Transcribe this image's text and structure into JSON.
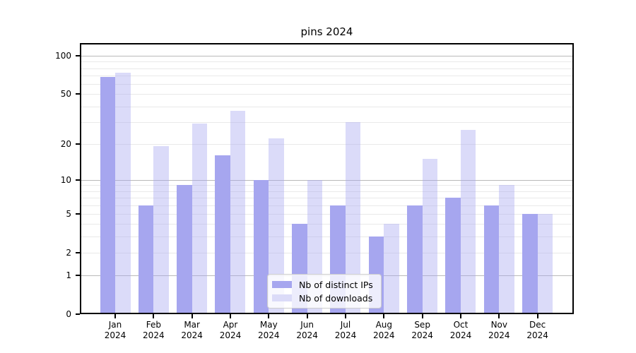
{
  "title": "pins 2024",
  "chart_data": {
    "type": "bar",
    "categories": [
      "Jan",
      "Feb",
      "Mar",
      "Apr",
      "May",
      "Jun",
      "Jul",
      "Aug",
      "Sep",
      "Oct",
      "Nov",
      "Dec"
    ],
    "year_label": "2024",
    "series": [
      {
        "name": "Nb of distinct IPs",
        "values": [
          68,
          6,
          9,
          16,
          10,
          4,
          6,
          3,
          6,
          7,
          6,
          5
        ],
        "color": "#a6a6ef",
        "fill": "#a6a6ef"
      },
      {
        "name": "Nb of downloads",
        "values": [
          74,
          19,
          29,
          37,
          22,
          10,
          30,
          4,
          15,
          26,
          9,
          5
        ],
        "color": "#dbdbf8",
        "fill": "rgba(166,166,239,0.4)"
      }
    ],
    "yscale": "log1p",
    "yticks": [
      0,
      1,
      2,
      5,
      10,
      20,
      50,
      100
    ],
    "major_gridlines": [
      1,
      10,
      100
    ],
    "minor_gridlines": [
      2,
      3,
      4,
      5,
      6,
      7,
      8,
      9,
      20,
      30,
      40,
      50,
      60,
      70,
      80,
      90
    ],
    "ylim": [
      0,
      126
    ],
    "xlabel": "",
    "ylabel": "",
    "grid": "on",
    "legend_position": "lower center"
  },
  "colors": {
    "major_grid": "#b9b9b9",
    "minor_grid": "#e9e9e9",
    "spine": "#000000",
    "legend_border": "#cccccc"
  }
}
